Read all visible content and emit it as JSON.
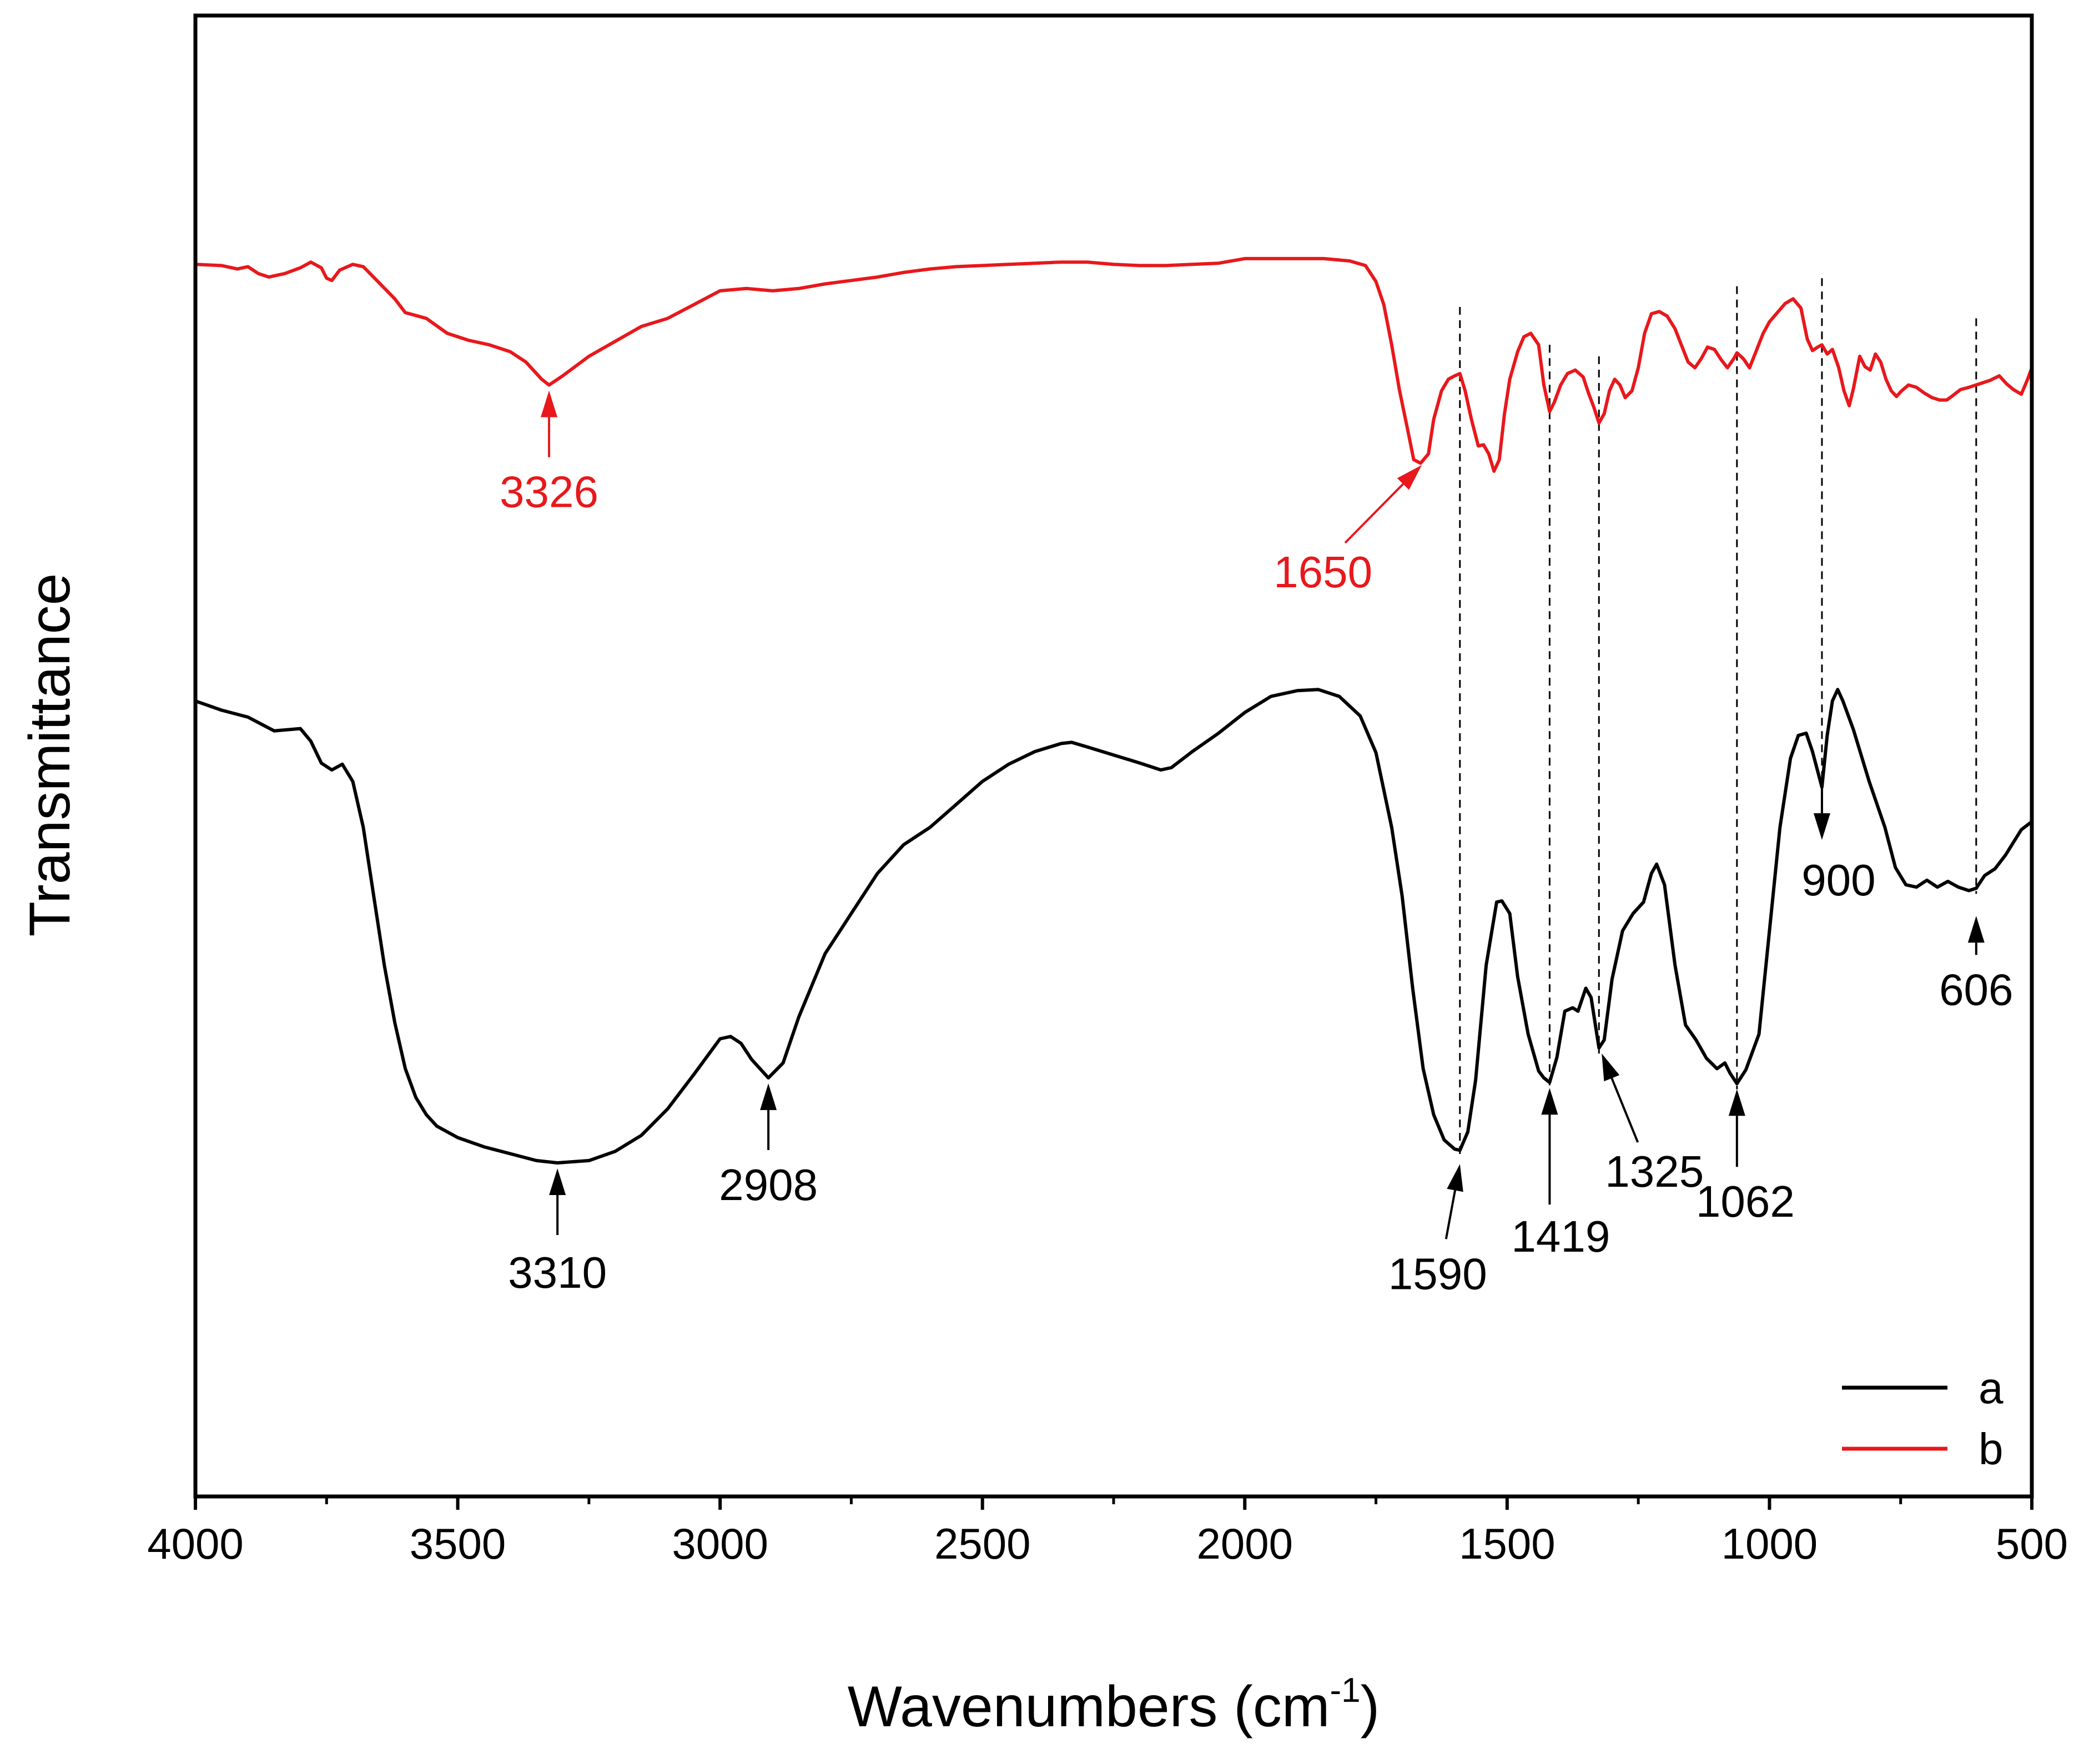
{
  "chart_data": {
    "type": "line",
    "xlabel": "Wavenumbers (cm",
    "xlabel_sup": "-1",
    "xlabel_close": ")",
    "ylabel": "Transmittance",
    "xlim": [
      4000,
      500
    ],
    "x_reversed": true,
    "x_ticks": [
      4000,
      3500,
      3000,
      2500,
      2000,
      1500,
      1000,
      500
    ],
    "y_ticks_shown": false,
    "ylim": [
      0,
      100
    ],
    "legend": {
      "placement": "bottom-right"
    },
    "series": [
      {
        "name": "a",
        "color": "#000000",
        "points": [
          [
            4000,
            53
          ],
          [
            3950,
            52.2
          ],
          [
            3900,
            51.6
          ],
          [
            3850,
            50.4
          ],
          [
            3800,
            50.6
          ],
          [
            3780,
            49.5
          ],
          [
            3760,
            47.6
          ],
          [
            3740,
            47
          ],
          [
            3720,
            47.5
          ],
          [
            3700,
            46
          ],
          [
            3680,
            42
          ],
          [
            3660,
            36
          ],
          [
            3640,
            30
          ],
          [
            3620,
            25
          ],
          [
            3600,
            21
          ],
          [
            3580,
            18.5
          ],
          [
            3560,
            17
          ],
          [
            3540,
            16
          ],
          [
            3500,
            15
          ],
          [
            3450,
            14.2
          ],
          [
            3400,
            13.6
          ],
          [
            3350,
            13
          ],
          [
            3310,
            12.8
          ],
          [
            3250,
            13
          ],
          [
            3200,
            13.8
          ],
          [
            3150,
            15.2
          ],
          [
            3100,
            17.5
          ],
          [
            3050,
            20.5
          ],
          [
            3000,
            23.6
          ],
          [
            2980,
            23.8
          ],
          [
            2960,
            23.2
          ],
          [
            2940,
            21.8
          ],
          [
            2908,
            20.2
          ],
          [
            2880,
            21.5
          ],
          [
            2850,
            25.5
          ],
          [
            2800,
            31
          ],
          [
            2750,
            34.5
          ],
          [
            2700,
            38
          ],
          [
            2650,
            40.5
          ],
          [
            2600,
            42
          ],
          [
            2550,
            44
          ],
          [
            2500,
            46
          ],
          [
            2450,
            47.5
          ],
          [
            2400,
            48.6
          ],
          [
            2350,
            49.3
          ],
          [
            2330,
            49.4
          ],
          [
            2300,
            49
          ],
          [
            2250,
            48.3
          ],
          [
            2200,
            47.6
          ],
          [
            2160,
            47
          ],
          [
            2140,
            47.2
          ],
          [
            2100,
            48.6
          ],
          [
            2050,
            50.2
          ],
          [
            2000,
            52
          ],
          [
            1950,
            53.4
          ],
          [
            1900,
            53.9
          ],
          [
            1860,
            54
          ],
          [
            1820,
            53.4
          ],
          [
            1780,
            51.7
          ],
          [
            1750,
            48.5
          ],
          [
            1720,
            42
          ],
          [
            1700,
            36
          ],
          [
            1680,
            28
          ],
          [
            1660,
            21
          ],
          [
            1640,
            17
          ],
          [
            1620,
            14.8
          ],
          [
            1600,
            14
          ],
          [
            1590,
            13.9
          ],
          [
            1575,
            15.5
          ],
          [
            1560,
            20
          ],
          [
            1540,
            30
          ],
          [
            1520,
            35.5
          ],
          [
            1510,
            35.6
          ],
          [
            1495,
            34.5
          ],
          [
            1480,
            29
          ],
          [
            1460,
            24
          ],
          [
            1440,
            20.8
          ],
          [
            1430,
            20.2
          ],
          [
            1419,
            19.8
          ],
          [
            1405,
            22
          ],
          [
            1390,
            26
          ],
          [
            1375,
            26.3
          ],
          [
            1365,
            26
          ],
          [
            1350,
            28
          ],
          [
            1340,
            27.2
          ],
          [
            1325,
            22.8
          ],
          [
            1315,
            23.5
          ],
          [
            1300,
            28.8
          ],
          [
            1280,
            33
          ],
          [
            1260,
            34.5
          ],
          [
            1240,
            35.5
          ],
          [
            1225,
            38
          ],
          [
            1215,
            38.8
          ],
          [
            1200,
            37
          ],
          [
            1180,
            30
          ],
          [
            1160,
            24.8
          ],
          [
            1140,
            23.5
          ],
          [
            1120,
            21.9
          ],
          [
            1100,
            21
          ],
          [
            1085,
            21.5
          ],
          [
            1075,
            20.6
          ],
          [
            1062,
            19.7
          ],
          [
            1045,
            20.9
          ],
          [
            1020,
            24
          ],
          [
            1000,
            33
          ],
          [
            980,
            42
          ],
          [
            960,
            48
          ],
          [
            945,
            50
          ],
          [
            930,
            50.2
          ],
          [
            918,
            48.6
          ],
          [
            900,
            45.5
          ],
          [
            890,
            50
          ],
          [
            880,
            53
          ],
          [
            870,
            54
          ],
          [
            860,
            53
          ],
          [
            840,
            50.5
          ],
          [
            810,
            46
          ],
          [
            780,
            42
          ],
          [
            760,
            38.5
          ],
          [
            740,
            37
          ],
          [
            720,
            36.8
          ],
          [
            700,
            37.4
          ],
          [
            680,
            36.8
          ],
          [
            660,
            37.3
          ],
          [
            640,
            36.8
          ],
          [
            620,
            36.5
          ],
          [
            606,
            36.7
          ],
          [
            590,
            37.8
          ],
          [
            570,
            38.4
          ],
          [
            550,
            39.6
          ],
          [
            520,
            41.8
          ],
          [
            500,
            42.5
          ]
        ]
      },
      {
        "name": "b",
        "color": "#e8181c",
        "points": [
          [
            4000,
            91
          ],
          [
            3950,
            90.9
          ],
          [
            3920,
            90.6
          ],
          [
            3900,
            90.8
          ],
          [
            3880,
            90.2
          ],
          [
            3860,
            89.9
          ],
          [
            3830,
            90.2
          ],
          [
            3800,
            90.7
          ],
          [
            3780,
            91.2
          ],
          [
            3760,
            90.7
          ],
          [
            3750,
            89.8
          ],
          [
            3740,
            89.6
          ],
          [
            3725,
            90.5
          ],
          [
            3700,
            91
          ],
          [
            3680,
            90.8
          ],
          [
            3650,
            89.4
          ],
          [
            3620,
            88
          ],
          [
            3600,
            86.8
          ],
          [
            3560,
            86.3
          ],
          [
            3520,
            85
          ],
          [
            3480,
            84.4
          ],
          [
            3440,
            84
          ],
          [
            3400,
            83.4
          ],
          [
            3370,
            82.5
          ],
          [
            3340,
            81
          ],
          [
            3326,
            80.5
          ],
          [
            3300,
            81.3
          ],
          [
            3250,
            83
          ],
          [
            3200,
            84.3
          ],
          [
            3150,
            85.6
          ],
          [
            3100,
            86.3
          ],
          [
            3050,
            87.5
          ],
          [
            3000,
            88.7
          ],
          [
            2950,
            88.9
          ],
          [
            2900,
            88.7
          ],
          [
            2850,
            88.9
          ],
          [
            2800,
            89.3
          ],
          [
            2750,
            89.6
          ],
          [
            2700,
            89.9
          ],
          [
            2650,
            90.3
          ],
          [
            2600,
            90.6
          ],
          [
            2550,
            90.8
          ],
          [
            2500,
            90.9
          ],
          [
            2450,
            91
          ],
          [
            2400,
            91.1
          ],
          [
            2350,
            91.2
          ],
          [
            2300,
            91.2
          ],
          [
            2250,
            91
          ],
          [
            2200,
            90.9
          ],
          [
            2150,
            90.9
          ],
          [
            2100,
            91
          ],
          [
            2050,
            91.1
          ],
          [
            2000,
            91.5
          ],
          [
            1950,
            91.5
          ],
          [
            1900,
            91.5
          ],
          [
            1850,
            91.5
          ],
          [
            1800,
            91.3
          ],
          [
            1770,
            90.9
          ],
          [
            1750,
            89.5
          ],
          [
            1735,
            87.5
          ],
          [
            1720,
            84
          ],
          [
            1705,
            80
          ],
          [
            1690,
            76.7
          ],
          [
            1678,
            74
          ],
          [
            1665,
            73.7
          ],
          [
            1650,
            74.5
          ],
          [
            1640,
            77.5
          ],
          [
            1625,
            80
          ],
          [
            1612,
            81
          ],
          [
            1600,
            81.3
          ],
          [
            1590,
            81.5
          ],
          [
            1580,
            80
          ],
          [
            1568,
            77.5
          ],
          [
            1555,
            75.2
          ],
          [
            1545,
            75.3
          ],
          [
            1535,
            74.5
          ],
          [
            1525,
            73
          ],
          [
            1515,
            74
          ],
          [
            1505,
            78
          ],
          [
            1495,
            81
          ],
          [
            1480,
            83.4
          ],
          [
            1468,
            84.7
          ],
          [
            1455,
            85
          ],
          [
            1440,
            84
          ],
          [
            1430,
            80.5
          ],
          [
            1419,
            78.2
          ],
          [
            1410,
            79
          ],
          [
            1398,
            80.5
          ],
          [
            1385,
            81.5
          ],
          [
            1370,
            81.8
          ],
          [
            1355,
            81.2
          ],
          [
            1345,
            79.8
          ],
          [
            1335,
            78.6
          ],
          [
            1325,
            77.2
          ],
          [
            1315,
            78
          ],
          [
            1305,
            80
          ],
          [
            1295,
            81
          ],
          [
            1285,
            80.5
          ],
          [
            1275,
            79.4
          ],
          [
            1262,
            80
          ],
          [
            1250,
            82
          ],
          [
            1238,
            85
          ],
          [
            1225,
            86.7
          ],
          [
            1210,
            86.9
          ],
          [
            1195,
            86.5
          ],
          [
            1180,
            85.4
          ],
          [
            1168,
            84
          ],
          [
            1155,
            82.5
          ],
          [
            1142,
            82
          ],
          [
            1130,
            82.8
          ],
          [
            1118,
            83.8
          ],
          [
            1105,
            83.6
          ],
          [
            1092,
            82.7
          ],
          [
            1080,
            82
          ],
          [
            1068,
            82.8
          ],
          [
            1062,
            83.3
          ],
          [
            1050,
            82.8
          ],
          [
            1038,
            82
          ],
          [
            1025,
            83.5
          ],
          [
            1012,
            85
          ],
          [
            1000,
            86
          ],
          [
            985,
            86.8
          ],
          [
            970,
            87.6
          ],
          [
            955,
            88
          ],
          [
            940,
            87.2
          ],
          [
            928,
            84.5
          ],
          [
            918,
            83.5
          ],
          [
            908,
            83.8
          ],
          [
            900,
            84
          ],
          [
            890,
            83.2
          ],
          [
            880,
            83.6
          ],
          [
            868,
            82
          ],
          [
            858,
            80
          ],
          [
            848,
            78.7
          ],
          [
            840,
            80.2
          ],
          [
            828,
            83
          ],
          [
            818,
            82.1
          ],
          [
            808,
            81.8
          ],
          [
            798,
            83.2
          ],
          [
            788,
            82.5
          ],
          [
            778,
            81
          ],
          [
            768,
            80
          ],
          [
            758,
            79.5
          ],
          [
            748,
            80
          ],
          [
            735,
            80.5
          ],
          [
            720,
            80.3
          ],
          [
            705,
            79.8
          ],
          [
            690,
            79.4
          ],
          [
            676,
            79.2
          ],
          [
            662,
            79.2
          ],
          [
            650,
            79.6
          ],
          [
            636,
            80.1
          ],
          [
            620,
            80.3
          ],
          [
            600,
            80.6
          ],
          [
            580,
            80.9
          ],
          [
            562,
            81.3
          ],
          [
            548,
            80.6
          ],
          [
            535,
            80.1
          ],
          [
            520,
            79.7
          ],
          [
            508,
            81
          ],
          [
            500,
            82
          ]
        ]
      }
    ],
    "annotations": [
      {
        "label": "3326",
        "series": "b",
        "x": 3326,
        "color": "#e8181c"
      },
      {
        "label": "1650",
        "series": "b",
        "x": 1650,
        "color": "#e8181c"
      },
      {
        "label": "3310",
        "series": "a",
        "x": 3310,
        "color": "#000000"
      },
      {
        "label": "2908",
        "series": "a",
        "x": 2908,
        "color": "#000000"
      },
      {
        "label": "1590",
        "series": "a",
        "x": 1590,
        "color": "#000000"
      },
      {
        "label": "1419",
        "series": "a",
        "x": 1419,
        "color": "#000000"
      },
      {
        "label": "1325",
        "series": "a",
        "x": 1325,
        "color": "#000000"
      },
      {
        "label": "1062",
        "series": "a",
        "x": 1062,
        "color": "#000000"
      },
      {
        "label": "900",
        "series": "a",
        "x": 900,
        "color": "#000000"
      },
      {
        "label": "606",
        "series": "a",
        "x": 606,
        "color": "#000000"
      }
    ],
    "reference_lines": [
      1590,
      1419,
      1325,
      1062,
      900,
      606
    ]
  }
}
